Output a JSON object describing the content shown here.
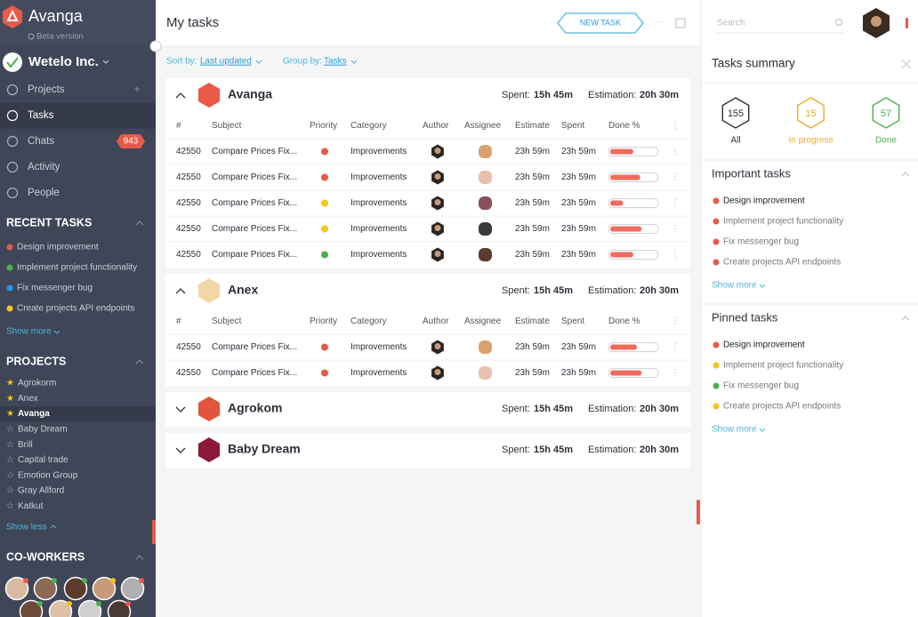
{
  "sidebar": {
    "brand": "Avanga",
    "beta": "Beta version",
    "workspace": "Wetelo Inc.",
    "nav": [
      {
        "label": "Projects"
      },
      {
        "label": "Tasks",
        "active": true
      },
      {
        "label": "Chats",
        "badge": 943
      },
      {
        "label": "Activity"
      },
      {
        "label": "People"
      }
    ],
    "recent_tasks": {
      "title": "RECENT TASKS",
      "items": [
        {
          "label": "Design improvement",
          "color": "#e8594a"
        },
        {
          "label": "Implement project functionality",
          "color": "#4caf50"
        },
        {
          "label": "Fix messenger bug",
          "color": "#2196f3"
        },
        {
          "label": "Create projects API endpoints",
          "color": "#f5c518"
        }
      ],
      "more": "Show more"
    },
    "projects": {
      "title": "PROJECTS",
      "items": [
        {
          "label": "Agrokorm",
          "starred": true
        },
        {
          "label": "Anex",
          "starred": true
        },
        {
          "label": "Avanga",
          "starred": true,
          "active": true
        },
        {
          "label": "Baby Dream",
          "starred": false
        },
        {
          "label": "Brill",
          "starred": false
        },
        {
          "label": "Capital trade",
          "starred": false
        },
        {
          "label": "Emotion Group",
          "starred": false
        },
        {
          "label": "Gray Allford",
          "starred": false
        },
        {
          "label": "Katkut",
          "starred": false
        }
      ],
      "less": "Show less"
    },
    "coworkers": {
      "title": "CO-WORKERS"
    }
  },
  "header": {
    "title": "My tasks",
    "button": "NEW TASK",
    "search": "Search"
  },
  "toolbar": {
    "sort_label": "Sort by:",
    "sort": "Last updated",
    "group_label": "Group by:",
    "group": "Tasks"
  },
  "labels": {
    "spent": "Spent:",
    "estimation": "Estimation:"
  },
  "columns": [
    "#",
    "Subject",
    "Priority",
    "Category",
    "Author",
    "Assignee",
    "Estimate",
    "Spent",
    "Done %"
  ],
  "projects": [
    {
      "name": "Avanga",
      "color": "#e8594a",
      "expanded": true,
      "spent": "15h 45m",
      "estimation": "20h 30m",
      "rows": [
        {
          "id": 42550,
          "subject": "Compare Prices Fix...",
          "priority": "#e8594a",
          "category": "Improvements",
          "estimate": "23h 59m",
          "spent": "23h 59m",
          "done": 50
        },
        {
          "id": 42550,
          "subject": "Compare Prices Fix...",
          "priority": "#e8594a",
          "category": "Improvements",
          "estimate": "23h 59m",
          "spent": "23h 59m",
          "done": 65
        },
        {
          "id": 42550,
          "subject": "Compare Prices Fix...",
          "priority": "#f5c518",
          "category": "Improvements",
          "estimate": "23h 59m",
          "spent": "23h 59m",
          "done": 28
        },
        {
          "id": 42550,
          "subject": "Compare Prices Fix...",
          "priority": "#f5c518",
          "category": "Improvements",
          "estimate": "23h 59m",
          "spent": "23h 59m",
          "done": 68
        },
        {
          "id": 42550,
          "subject": "Compare Prices Fix...",
          "priority": "#4caf50",
          "category": "Improvements",
          "estimate": "23h 59m",
          "spent": "23h 59m",
          "done": 50
        }
      ]
    },
    {
      "name": "Anex",
      "color": "#f2d7a6",
      "expanded": true,
      "spent": "15h 45m",
      "estimation": "20h 30m",
      "rows": [
        {
          "id": 42550,
          "subject": "Compare Prices Fix...",
          "priority": "#e8594a",
          "category": "Improvements",
          "estimate": "23h 59m",
          "spent": "23h 59m",
          "done": 58
        },
        {
          "id": 42550,
          "subject": "Compare Prices Fix...",
          "priority": "#e8594a",
          "category": "Improvements",
          "estimate": "23h 59m",
          "spent": "23h 59m",
          "done": 68
        }
      ]
    },
    {
      "name": "Agrokom",
      "color": "#e0553c",
      "expanded": false,
      "spent": "15h 45m",
      "estimation": "20h 30m",
      "rows": []
    },
    {
      "name": "Baby Dream",
      "color": "#8b1a3a",
      "expanded": false,
      "spent": "15h 45m",
      "estimation": "20h 30m",
      "rows": []
    }
  ],
  "summary": {
    "title": "Tasks summary",
    "counts": [
      {
        "value": 155,
        "label": "All",
        "color": "#2b2f38"
      },
      {
        "value": 15,
        "label": "In progress",
        "color": "#f0a92b"
      },
      {
        "value": 57,
        "label": "Done",
        "color": "#4caf50"
      }
    ],
    "important": {
      "title": "Important tasks",
      "items": [
        {
          "label": "Design improvement",
          "color": "#e8594a"
        },
        {
          "label": "Implement project functionality",
          "color": "#e8594a"
        },
        {
          "label": "Fix messenger bug",
          "color": "#e8594a"
        },
        {
          "label": "Create projects API endpoints",
          "color": "#e8594a"
        }
      ],
      "more": "Show more"
    },
    "pinned": {
      "title": "Pinned tasks",
      "items": [
        {
          "label": "Design improvement",
          "color": "#e8594a"
        },
        {
          "label": "Implement project functionality",
          "color": "#f5c518"
        },
        {
          "label": "Fix messenger bug",
          "color": "#4caf50"
        },
        {
          "label": "Create projects API endpoints",
          "color": "#f5c518"
        }
      ],
      "more": "Show more"
    }
  }
}
